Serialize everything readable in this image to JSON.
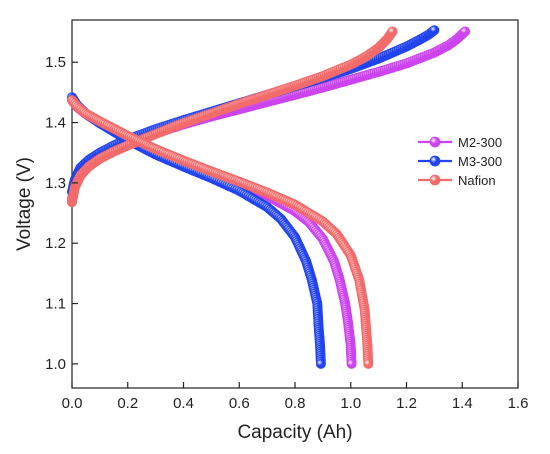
{
  "chart_data": {
    "type": "scatter",
    "title": "",
    "xlabel": "Capacity (Ah)",
    "ylabel": "Voltage (V)",
    "xlim": [
      0.0,
      1.6
    ],
    "ylim": [
      0.96,
      1.57
    ],
    "xticks": [
      "0.0",
      "0.2",
      "0.4",
      "0.6",
      "0.8",
      "1.0",
      "1.2",
      "1.4",
      "1.6"
    ],
    "yticks": [
      "1.0",
      "1.1",
      "1.2",
      "1.3",
      "1.4",
      "1.5"
    ],
    "grid": false,
    "legend_position": "right",
    "series": [
      {
        "name": "M2-300",
        "color": "#cc44ee",
        "charge": {
          "x": [
            0.0,
            0.01,
            0.03,
            0.06,
            0.1,
            0.15,
            0.2,
            0.3,
            0.4,
            0.5,
            0.6,
            0.7,
            0.8,
            0.9,
            1.0,
            1.1,
            1.2,
            1.3,
            1.35,
            1.38,
            1.41
          ],
          "y": [
            1.272,
            1.3,
            1.318,
            1.332,
            1.344,
            1.355,
            1.364,
            1.382,
            1.397,
            1.41,
            1.422,
            1.434,
            1.446,
            1.458,
            1.471,
            1.484,
            1.498,
            1.516,
            1.528,
            1.538,
            1.551
          ]
        },
        "discharge": {
          "x": [
            0.0,
            0.02,
            0.05,
            0.1,
            0.2,
            0.3,
            0.4,
            0.5,
            0.6,
            0.7,
            0.8,
            0.85,
            0.9,
            0.94,
            0.96,
            0.98,
            0.99,
            1.0,
            1.003
          ],
          "y": [
            1.437,
            1.425,
            1.414,
            1.399,
            1.373,
            1.351,
            1.332,
            1.315,
            1.298,
            1.279,
            1.253,
            1.235,
            1.207,
            1.17,
            1.14,
            1.1,
            1.07,
            1.03,
            1.0
          ]
        }
      },
      {
        "name": "M3-300",
        "color": "#2244ee",
        "charge": {
          "x": [
            0.0,
            0.01,
            0.03,
            0.06,
            0.1,
            0.15,
            0.2,
            0.3,
            0.4,
            0.5,
            0.6,
            0.7,
            0.8,
            0.9,
            1.0,
            1.1,
            1.2,
            1.25,
            1.28,
            1.3
          ],
          "y": [
            1.285,
            1.305,
            1.325,
            1.338,
            1.35,
            1.362,
            1.372,
            1.389,
            1.404,
            1.418,
            1.432,
            1.446,
            1.46,
            1.474,
            1.489,
            1.506,
            1.526,
            1.538,
            1.546,
            1.553
          ]
        },
        "discharge": {
          "x": [
            0.0,
            0.02,
            0.05,
            0.1,
            0.2,
            0.3,
            0.4,
            0.5,
            0.6,
            0.7,
            0.75,
            0.8,
            0.84,
            0.86,
            0.88,
            0.885,
            0.89,
            0.893
          ],
          "y": [
            1.442,
            1.428,
            1.415,
            1.399,
            1.371,
            1.347,
            1.327,
            1.308,
            1.287,
            1.26,
            1.24,
            1.21,
            1.17,
            1.14,
            1.1,
            1.06,
            1.03,
            1.0
          ]
        }
      },
      {
        "name": "Nafion",
        "color": "#f26b6b",
        "charge": {
          "x": [
            0.0,
            0.01,
            0.03,
            0.06,
            0.1,
            0.15,
            0.2,
            0.3,
            0.4,
            0.5,
            0.6,
            0.7,
            0.8,
            0.9,
            1.0,
            1.05,
            1.1,
            1.13,
            1.15
          ],
          "y": [
            1.268,
            1.292,
            1.312,
            1.327,
            1.34,
            1.352,
            1.362,
            1.381,
            1.399,
            1.415,
            1.431,
            1.446,
            1.461,
            1.477,
            1.496,
            1.508,
            1.524,
            1.538,
            1.551
          ]
        },
        "discharge": {
          "x": [
            0.0,
            0.02,
            0.05,
            0.1,
            0.2,
            0.3,
            0.4,
            0.5,
            0.6,
            0.7,
            0.8,
            0.9,
            0.95,
            1.0,
            1.03,
            1.05,
            1.055,
            1.06,
            1.063
          ],
          "y": [
            1.437,
            1.426,
            1.415,
            1.402,
            1.378,
            1.356,
            1.337,
            1.319,
            1.302,
            1.284,
            1.264,
            1.236,
            1.215,
            1.18,
            1.14,
            1.09,
            1.06,
            1.03,
            1.0
          ]
        }
      }
    ]
  }
}
